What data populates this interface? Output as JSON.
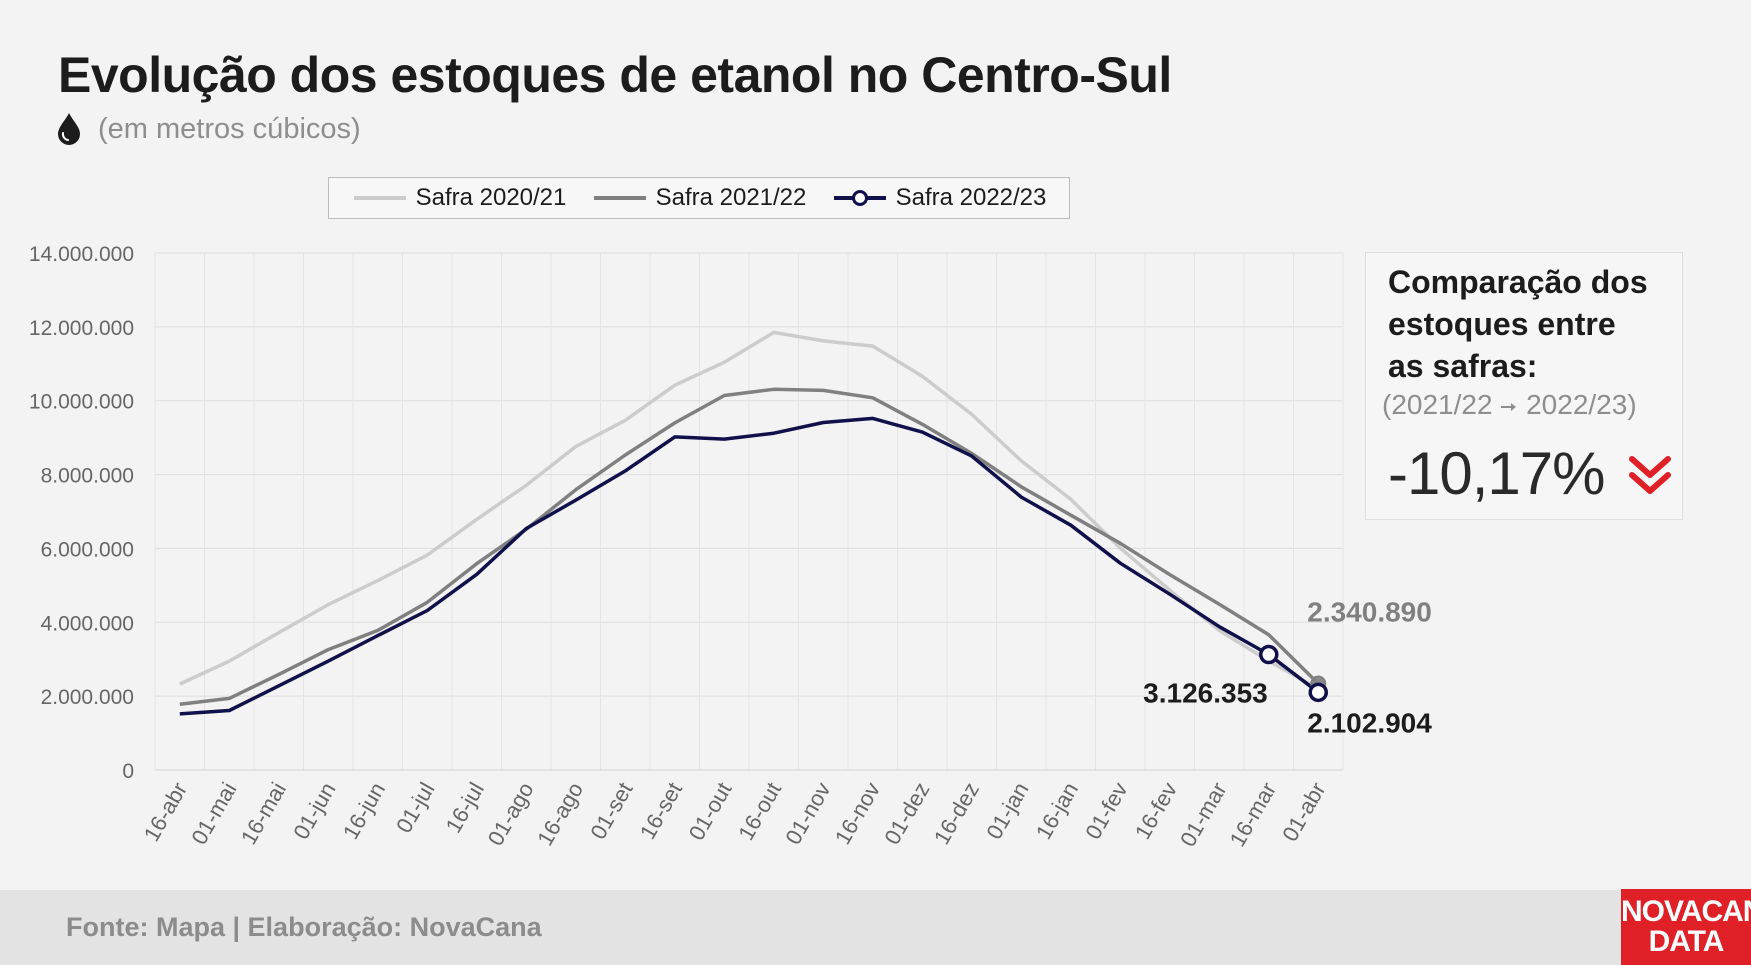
{
  "header": {
    "title": "Evolução dos estoques de etanol no Centro-Sul",
    "subtitle": "(em metros cúbicos)",
    "subtitle_icon": "drop-icon"
  },
  "comparison": {
    "heading_line1": "Comparação dos",
    "heading_line2": "estoques entre",
    "heading_line3": "as safras:",
    "range_from": "(2021/22",
    "range_to": "2022/23)",
    "value": "-10,17%",
    "trend_icon": "double-chevron-down-icon",
    "trend_color": "#e02027"
  },
  "footer": {
    "source": "Fonte: Mapa | Elaboração: NovaCana"
  },
  "logo": {
    "line1": "NOVACANA",
    "line2": "DATA",
    "color": "#e02027"
  },
  "chart_data": {
    "type": "line",
    "title": "Evolução dos estoques de etanol no Centro-Sul",
    "subtitle": "(em metros cúbicos)",
    "xlabel": "",
    "ylabel": "",
    "ylim": [
      0,
      14000000
    ],
    "y_ticks": [
      0,
      2000000,
      4000000,
      6000000,
      8000000,
      10000000,
      12000000,
      14000000
    ],
    "y_tick_labels": [
      "0",
      "2.000.000",
      "4.000.000",
      "6.000.000",
      "8.000.000",
      "10.000.000",
      "12.000.000",
      "14.000.000"
    ],
    "grid": true,
    "legend_position": "top-center",
    "categories": [
      "16-abr",
      "01-mai",
      "16-mai",
      "01-jun",
      "16-jun",
      "01-jul",
      "16-jul",
      "01-ago",
      "16-ago",
      "01-set",
      "16-set",
      "01-out",
      "16-out",
      "01-nov",
      "16-nov",
      "01-dez",
      "16-dez",
      "01-jan",
      "16-jan",
      "01-fev",
      "16-fev",
      "01-mar",
      "16-mar",
      "01-abr"
    ],
    "series": [
      {
        "name": "Safra 2020/21",
        "color": "#cccccc",
        "values": [
          2330000,
          2950000,
          3720000,
          4480000,
          5130000,
          5820000,
          6790000,
          7710000,
          8760000,
          9470000,
          10420000,
          11040000,
          11850000,
          11620000,
          11480000,
          10660000,
          9630000,
          8370000,
          7330000,
          6010000,
          4870000,
          3780000,
          2950000,
          2200000
        ],
        "marker_last": true
      },
      {
        "name": "Safra 2021/22",
        "color": "#808080",
        "values": [
          1780000,
          1940000,
          2590000,
          3260000,
          3780000,
          4540000,
          5590000,
          6520000,
          7590000,
          8530000,
          9400000,
          10140000,
          10310000,
          10280000,
          10080000,
          9360000,
          8570000,
          7670000,
          6900000,
          6140000,
          5290000,
          4490000,
          3660000,
          2340890
        ],
        "marker_last": true,
        "annotations": [
          {
            "category": "01-abr",
            "value": 2340890,
            "label": "2.340.890"
          }
        ]
      },
      {
        "name": "Safra 2022/23",
        "color": "#10104a",
        "values": [
          1520000,
          1610000,
          2280000,
          2950000,
          3640000,
          4320000,
          5300000,
          6540000,
          7310000,
          8100000,
          9020000,
          8960000,
          9120000,
          9410000,
          9520000,
          9150000,
          8500000,
          7390000,
          6630000,
          5600000,
          4760000,
          3880000,
          3126353,
          2102904
        ],
        "markers": [
          "16-mar",
          "01-abr"
        ],
        "annotations": [
          {
            "category": "16-mar",
            "value": 3126353,
            "label": "3.126.353"
          },
          {
            "category": "01-abr",
            "value": 2102904,
            "label": "2.102.904"
          }
        ]
      }
    ]
  }
}
